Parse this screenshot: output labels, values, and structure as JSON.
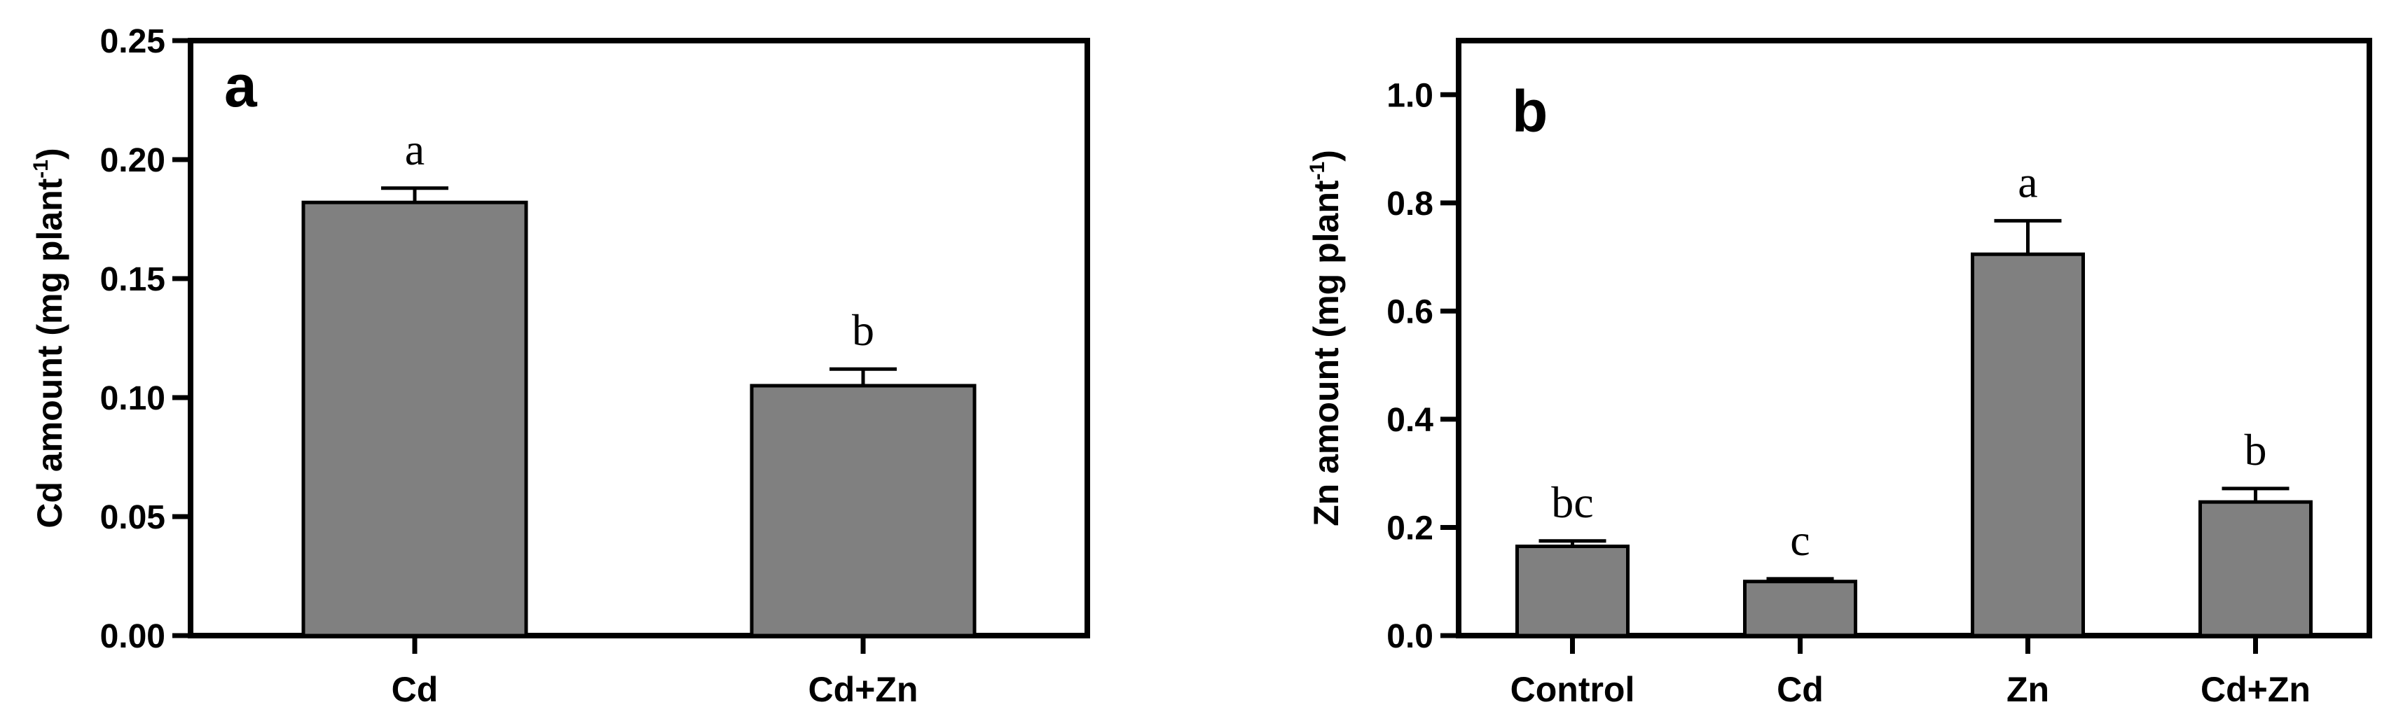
{
  "chart_data": [
    {
      "type": "bar",
      "panel_label": "a",
      "categories": [
        "Cd",
        "Cd+Zn"
      ],
      "values": [
        0.182,
        0.105
      ],
      "errors": [
        0.006,
        0.007
      ],
      "significance": [
        "a",
        "b"
      ],
      "ylabel": "Cd amount (mg plant",
      "ylabel_superscript": "-1",
      "ylabel_close": ")",
      "ylim": [
        0,
        0.25
      ],
      "yticks": [
        0.0,
        0.05,
        0.1,
        0.15,
        0.2,
        0.25
      ],
      "ytick_labels": [
        "0.00",
        "0.05",
        "0.10",
        "0.15",
        "0.20",
        "0.25"
      ],
      "bar_color": "#808080",
      "grid": false
    },
    {
      "type": "bar",
      "panel_label": "b",
      "categories": [
        "Control",
        "Cd",
        "Zn",
        "Cd+Zn"
      ],
      "values": [
        0.165,
        0.1,
        0.705,
        0.247
      ],
      "errors": [
        0.01,
        0.005,
        0.062,
        0.025
      ],
      "significance": [
        "bc",
        "c",
        "a",
        "b"
      ],
      "ylabel": "Zn amount (mg plant",
      "ylabel_superscript": "-1",
      "ylabel_close": ")",
      "ylim": [
        0,
        1.1
      ],
      "yticks": [
        0.0,
        0.2,
        0.4,
        0.6,
        0.8,
        1.0
      ],
      "ytick_labels": [
        "0.0",
        "0.2",
        "0.4",
        "0.6",
        "0.8",
        "1.0"
      ],
      "bar_color": "#808080",
      "grid": false
    }
  ]
}
